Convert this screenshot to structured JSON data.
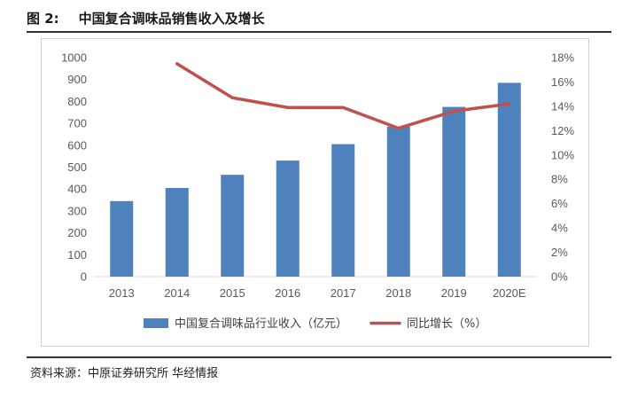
{
  "figure": {
    "number": "图 2:",
    "title": "中国复合调味品销售收入及增长",
    "source": "资料来源：中原证券研究所  华经情报"
  },
  "chart_data": {
    "type": "bar",
    "categories": [
      "2013",
      "2014",
      "2015",
      "2016",
      "2017",
      "2018",
      "2019",
      "2020E"
    ],
    "series": [
      {
        "name": "中国复合调味品行业收入（亿元）",
        "type": "bar",
        "axis": "left",
        "color": "#4f81bd",
        "values": [
          345,
          405,
          465,
          530,
          605,
          685,
          775,
          885
        ]
      },
      {
        "name": "同比增长（%）",
        "type": "line",
        "axis": "right",
        "color": "#c0504d",
        "values": [
          null,
          17.5,
          14.7,
          13.9,
          13.9,
          12.2,
          13.6,
          14.2
        ]
      }
    ],
    "y_left": {
      "min": 0,
      "max": 1000,
      "step": 100
    },
    "y_right": {
      "min": 0,
      "max": 18,
      "step": 2,
      "unit": "%"
    },
    "grid": false,
    "legend_position": "bottom"
  }
}
